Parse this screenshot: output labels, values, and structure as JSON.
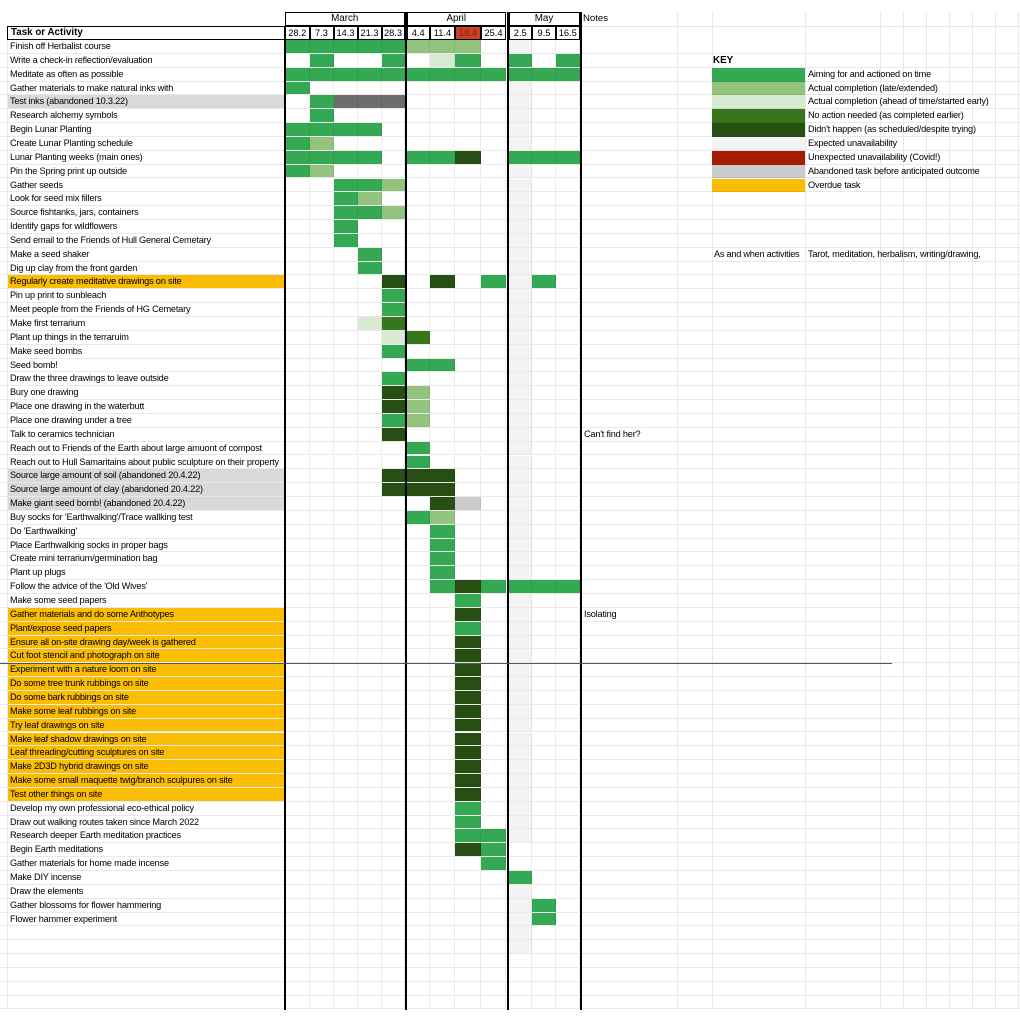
{
  "header": {
    "task_col": "Task or Activity",
    "notes_col": "Notes"
  },
  "header_highlight": {
    "date": "18.4",
    "bg": "#cc4125",
    "text": "#85200c"
  },
  "palette": {
    "G": "#34a853",
    "L": "#93c47d",
    "P": "#d9ead3",
    "F": "#38761d",
    "D": "#274e13",
    "E": "#f3f3f3",
    "R": "#a61c00",
    "A": "#cccccc",
    "X": "#6d6d6d",
    "O": "#fbbc04"
  },
  "label_bg_colors": {
    "gray": "#d9d9d9",
    "orange": "#fbbc04"
  },
  "key": {
    "title": "KEY",
    "entries": [
      {
        "code": "G",
        "label": "Aiming for and actioned on time"
      },
      {
        "code": "L",
        "label": "Actual completion (late/extended)"
      },
      {
        "code": "P",
        "label": "Actual completion (ahead of time/started early)"
      },
      {
        "code": "F",
        "label": "No action needed (as completed earlier)"
      },
      {
        "code": "D",
        "label": "Didn't happen (as scheduled/despite trying)"
      },
      {
        "code": "E",
        "label": "Expected unavailability"
      },
      {
        "code": "R",
        "label": "Unexpected unavailability (Covid!)"
      },
      {
        "code": "A",
        "label": "Abandoned task before anticipated outcome"
      },
      {
        "code": "O",
        "label": "Overdue task"
      }
    ],
    "as_and_when_label": "As and when activities",
    "as_and_when_value": "Tarot, meditation, herbalism, writing/drawing,"
  },
  "chart_data": {
    "type": "gantt",
    "columns": [
      "28.2",
      "7.3",
      "14.3",
      "21.3",
      "28.3",
      "4.4",
      "11.4",
      "18.4",
      "25.4",
      "2.5",
      "9.5",
      "16.5"
    ],
    "column_groups": [
      {
        "label": "March",
        "span": 5
      },
      {
        "label": "April",
        "span": 4
      },
      {
        "label": "May",
        "span": 3
      }
    ],
    "cell_code_legend": "G=aiming/actioned on time, L=actual completion late/extended, P=actual completion ahead/started early, F=no action needed, D=didn't happen, E=expected unavailability, R=unexpected unavailability, A=abandoned, X=abandoned dark gray, .=empty",
    "rows": [
      {
        "task": "Finish off Herbalist course",
        "bg": "",
        "cells": "GGGGGLLL.E..",
        "note": ""
      },
      {
        "task": "Write a check-in reflection/evaluation",
        "bg": "",
        "cells": ".G..G.PG.G.G",
        "note": ""
      },
      {
        "task": "Meditate as often as possible",
        "bg": "",
        "cells": "GGGGGGGGGGGG",
        "note": ""
      },
      {
        "task": "Gather materials to make natural inks with",
        "bg": "",
        "cells": "G........E..",
        "note": ""
      },
      {
        "task": "Test inks (abandoned 10.3.22)",
        "bg": "gray",
        "cells": ".GXXX....E..",
        "note": ""
      },
      {
        "task": "Research alchemy symbols",
        "bg": "",
        "cells": ".G.......E..",
        "note": ""
      },
      {
        "task": "Begin Lunar Planting",
        "bg": "",
        "cells": "GGGG.....E..",
        "note": ""
      },
      {
        "task": "Create Lunar Planting schedule",
        "bg": "",
        "cells": "GL.......E..",
        "note": ""
      },
      {
        "task": "Lunar Planting weeks (main ones)",
        "bg": "",
        "cells": "GGGG.GGD.GGG",
        "note": ""
      },
      {
        "task": "Pin the Spring print up outside",
        "bg": "",
        "cells": "GL.......E..",
        "note": ""
      },
      {
        "task": "Gather seeds",
        "bg": "",
        "cells": "..GGL....E..",
        "note": ""
      },
      {
        "task": "Look for seed mix fillers",
        "bg": "",
        "cells": "..GL.....E..",
        "note": ""
      },
      {
        "task": "Source fishtanks, jars, containers",
        "bg": "",
        "cells": "..GGL....E..",
        "note": ""
      },
      {
        "task": "Identify gaps for wildflowers",
        "bg": "",
        "cells": "..G......E..",
        "note": ""
      },
      {
        "task": "Send email to the Friends of Hull General Cemetary",
        "bg": "",
        "cells": "..G......E..",
        "note": ""
      },
      {
        "task": "Make a seed shaker",
        "bg": "",
        "cells": "...G.....E..",
        "note": ""
      },
      {
        "task": "Dig up clay from the front garden",
        "bg": "",
        "cells": "...G.....E..",
        "note": ""
      },
      {
        "task": "Regularly create meditative drawings on site",
        "bg": "orange",
        "cells": "....D.D.GEG.",
        "note": ""
      },
      {
        "task": "Pin up print to sunbleach",
        "bg": "",
        "cells": "....G....E..",
        "note": ""
      },
      {
        "task": "Meet people from the Friends of HG Cemetary",
        "bg": "",
        "cells": "....G....E..",
        "note": ""
      },
      {
        "task": "Make first terrarium",
        "bg": "",
        "cells": "...PF....E..",
        "note": ""
      },
      {
        "task": "Plant up things in the terraruim",
        "bg": "",
        "cells": "....PF...E..",
        "note": ""
      },
      {
        "task": "Make seed bombs",
        "bg": "",
        "cells": "....G....E..",
        "note": ""
      },
      {
        "task": "Seed bomb!",
        "bg": "",
        "cells": ".....GG..E..",
        "note": ""
      },
      {
        "task": "Draw the three drawings to leave outside",
        "bg": "",
        "cells": "....G....E..",
        "note": ""
      },
      {
        "task": "Bury one drawing",
        "bg": "",
        "cells": "....DL...E..",
        "note": ""
      },
      {
        "task": "Place one drawing in the waterbutt",
        "bg": "",
        "cells": "....DL...E..",
        "note": ""
      },
      {
        "task": "Place one drawing under a tree",
        "bg": "",
        "cells": "....GL...E..",
        "note": ""
      },
      {
        "task": "Talk to ceramics technician",
        "bg": "",
        "cells": "....D....E..",
        "note": "Can't find her?"
      },
      {
        "task": "Reach out to Friends of the Earth about large amuont of compost",
        "bg": "",
        "cells": ".....G...E..",
        "note": ""
      },
      {
        "task": "Reach out to Hull Samaritains about public sculpture on their property",
        "bg": "",
        "cells": ".....G...E..",
        "note": ""
      },
      {
        "task": "Source large amount of soil (abandoned 20.4.22)",
        "bg": "gray",
        "cells": "....DDD..E..",
        "note": ""
      },
      {
        "task": "Source large amount of clay (abandoned 20.4.22)",
        "bg": "gray",
        "cells": "....DDD..E..",
        "note": ""
      },
      {
        "task": "Make giant seed bomb! (abandoned 20.4.22)",
        "bg": "gray",
        "cells": "......DA.E..",
        "note": ""
      },
      {
        "task": "Buy socks for 'Earthwalking'/Trace wallking test",
        "bg": "",
        "cells": ".....GL..E..",
        "note": ""
      },
      {
        "task": "Do 'Earthwalking'",
        "bg": "",
        "cells": "......G..E..",
        "note": ""
      },
      {
        "task": "Place Earthwalking socks in proper bags",
        "bg": "",
        "cells": "......G..E..",
        "note": ""
      },
      {
        "task": "Create mini terrarium/germination bag",
        "bg": "",
        "cells": "......G..E..",
        "note": ""
      },
      {
        "task": "Plant up plugs",
        "bg": "",
        "cells": "......G..E..",
        "note": ""
      },
      {
        "task": "Follow the advice of the 'Old Wives'",
        "bg": "",
        "cells": "......GDGGGG",
        "note": ""
      },
      {
        "task": "Make some seed papers",
        "bg": "",
        "cells": ".......G.E..",
        "note": ""
      },
      {
        "task": "Gather materials and do some Anthotypes",
        "bg": "orange",
        "cells": ".......D.E..",
        "note": "Isolating"
      },
      {
        "task": "Plant/expose seed papers",
        "bg": "orange",
        "cells": ".......G.E..",
        "note": ""
      },
      {
        "task": "Ensure all on-site drawing day/week is gathered",
        "bg": "orange",
        "cells": ".......D.E..",
        "note": ""
      },
      {
        "task": "Cut foot stencil and photograph on site",
        "bg": "orange",
        "cells": ".......D.E..",
        "note": ""
      },
      {
        "task": "Experiment with a nature loom on site",
        "bg": "orange",
        "cells": ".......D.E..",
        "note": ""
      },
      {
        "task": "Do some tree trunk rubbings on site",
        "bg": "orange",
        "cells": ".......D.E..",
        "note": ""
      },
      {
        "task": "Do some bark rubbings on site",
        "bg": "orange",
        "cells": ".......D.E..",
        "note": ""
      },
      {
        "task": "Make some leaf rubbings on site",
        "bg": "orange",
        "cells": ".......D.E..",
        "note": ""
      },
      {
        "task": "Try leaf drawings on site",
        "bg": "orange",
        "cells": ".......D.E..",
        "note": ""
      },
      {
        "task": "Make leaf shadow drawings on site",
        "bg": "orange",
        "cells": ".......D.E..",
        "note": ""
      },
      {
        "task": "Leaf threading/cutting sculptures on site",
        "bg": "orange",
        "cells": ".......D.E..",
        "note": ""
      },
      {
        "task": "Make 2D3D hybrid drawings on site",
        "bg": "orange",
        "cells": ".......D.E..",
        "note": ""
      },
      {
        "task": "Make some small maquette twig/branch sculpures on site",
        "bg": "orange",
        "cells": ".......D.E..",
        "note": ""
      },
      {
        "task": "Test other things on site",
        "bg": "orange",
        "cells": ".......D.E..",
        "note": ""
      },
      {
        "task": "Develop my own professional eco-ethical policy",
        "bg": "",
        "cells": ".......G.E..",
        "note": ""
      },
      {
        "task": "Draw out walking routes taken since March 2022",
        "bg": "",
        "cells": ".......G.E..",
        "note": ""
      },
      {
        "task": "Research deeper Earth meditation practices",
        "bg": "",
        "cells": ".......GGE..",
        "note": ""
      },
      {
        "task": "Begin Earth meditations",
        "bg": "",
        "cells": ".......DG...",
        "note": ""
      },
      {
        "task": "Gather materials for home made incense",
        "bg": "",
        "cells": "........G...",
        "note": ""
      },
      {
        "task": "Make DIY incense",
        "bg": "",
        "cells": ".........G..",
        "note": ""
      },
      {
        "task": "Draw the elements",
        "bg": "",
        "cells": ".........E..",
        "note": ""
      },
      {
        "task": "Gather blossoms for flower hammering",
        "bg": "",
        "cells": ".........EG.",
        "note": ""
      },
      {
        "task": "Flower hammer experiment",
        "bg": "",
        "cells": ".........EG.",
        "note": ""
      },
      {
        "task": "",
        "bg": "",
        "cells": ".........E..",
        "note": ""
      },
      {
        "task": "",
        "bg": "",
        "cells": ".........E..",
        "note": ""
      },
      {
        "task": "",
        "bg": "",
        "cells": "............",
        "note": ""
      },
      {
        "task": "",
        "bg": "",
        "cells": "............",
        "note": ""
      },
      {
        "task": "",
        "bg": "",
        "cells": "............",
        "note": ""
      },
      {
        "task": "",
        "bg": "",
        "cells": "............",
        "note": ""
      }
    ]
  }
}
